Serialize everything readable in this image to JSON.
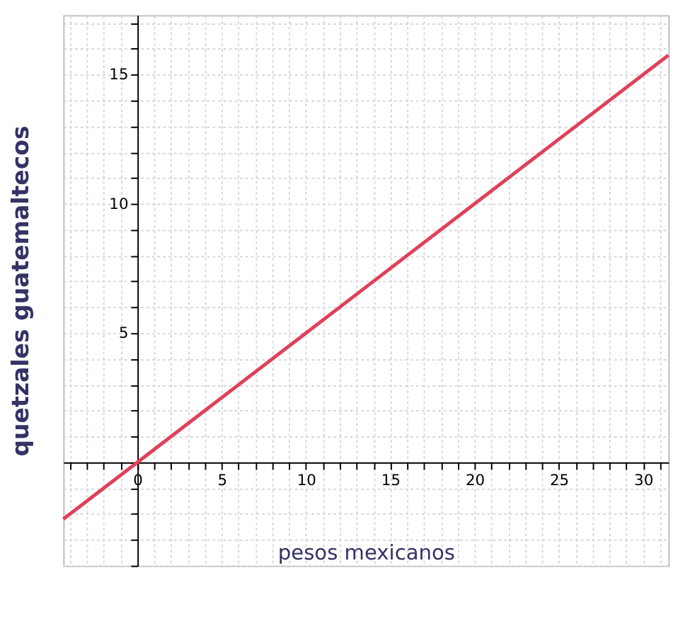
{
  "chart_data": {
    "type": "line",
    "xlabel": "pesos mexicanos",
    "ylabel": "quetzales guatemaltecos",
    "x": [
      -4.4,
      0,
      10,
      20,
      31.5
    ],
    "series": [
      {
        "color": "#e0405a",
        "values": [
          -2.2,
          0,
          5,
          10,
          15.75
        ]
      }
    ],
    "xlim": [
      -4.4,
      31.5
    ],
    "ylim": [
      -4,
      17.3
    ],
    "xticks": [
      {
        "value": -4,
        "label": null
      },
      {
        "value": -3,
        "label": null
      },
      {
        "value": -2,
        "label": null
      },
      {
        "value": -1,
        "label": null
      },
      0,
      {
        "value": 1,
        "label": null
      },
      {
        "value": 2,
        "label": null
      },
      {
        "value": 3,
        "label": null
      },
      {
        "value": 4,
        "label": null
      },
      5,
      {
        "value": 6,
        "label": null
      },
      {
        "value": 7,
        "label": null
      },
      {
        "value": 8,
        "label": null
      },
      {
        "value": 9,
        "label": null
      },
      10,
      {
        "value": 11,
        "label": null
      },
      {
        "value": 12,
        "label": null
      },
      {
        "value": 13,
        "label": null
      },
      {
        "value": 14,
        "label": null
      },
      15,
      {
        "value": 16,
        "label": null
      },
      {
        "value": 17,
        "label": null
      },
      {
        "value": 18,
        "label": null
      },
      {
        "value": 19,
        "label": null
      },
      20,
      {
        "value": 21,
        "label": null
      },
      {
        "value": 22,
        "label": null
      },
      {
        "value": 23,
        "label": null
      },
      {
        "value": 24,
        "label": null
      },
      25,
      {
        "value": 26,
        "label": null
      },
      {
        "value": 27,
        "label": null
      },
      {
        "value": 28,
        "label": null
      },
      {
        "value": 29,
        "label": null
      },
      30,
      {
        "value": 31,
        "label": null
      }
    ],
    "yticks": [
      {
        "value": -4,
        "label": null
      },
      {
        "value": -3,
        "label": null
      },
      {
        "value": -2,
        "label": null
      },
      {
        "value": -1,
        "label": null
      },
      {
        "value": 0,
        "label": null
      },
      {
        "value": 1,
        "label": null
      },
      {
        "value": 2,
        "label": null
      },
      {
        "value": 3,
        "label": null
      },
      {
        "value": 4,
        "label": null
      },
      5,
      {
        "value": 6,
        "label": null
      },
      {
        "value": 7,
        "label": null
      },
      {
        "value": 8,
        "label": null
      },
      {
        "value": 9,
        "label": null
      },
      10,
      {
        "value": 11,
        "label": null
      },
      {
        "value": 12,
        "label": null
      },
      {
        "value": 13,
        "label": null
      },
      {
        "value": 14,
        "label": null
      },
      15,
      {
        "value": 16,
        "label": null
      },
      {
        "value": 17,
        "label": null
      }
    ],
    "grid": true,
    "marker": "none",
    "line_style": "solid"
  }
}
